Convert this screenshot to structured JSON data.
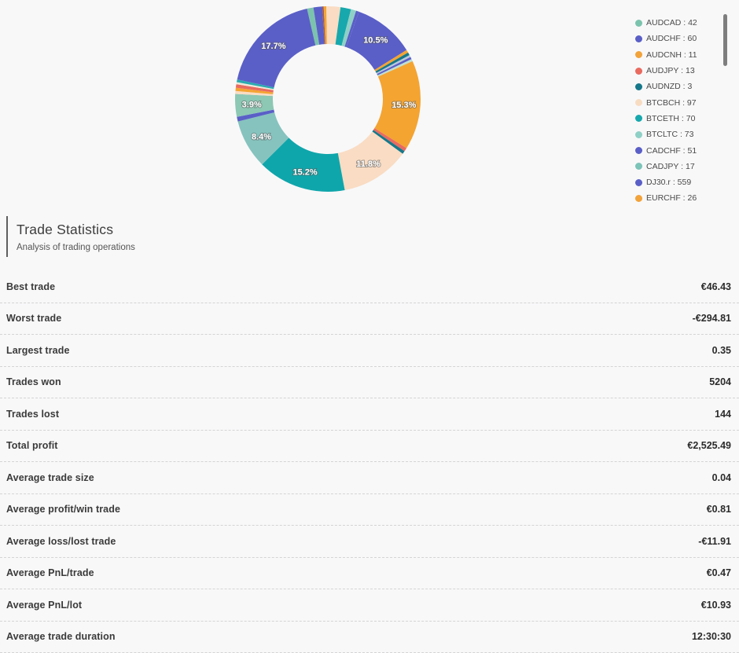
{
  "page": {
    "background": "#f8f8f9"
  },
  "section": {
    "title": "Trade Statistics",
    "subtitle": "Analysis of trading operations"
  },
  "stats": {
    "rows": [
      {
        "label": "Best trade",
        "value": "€46.43"
      },
      {
        "label": "Worst trade",
        "value": "-€294.81"
      },
      {
        "label": "Largest trade",
        "value": "0.35"
      },
      {
        "label": "Trades won",
        "value": "5204"
      },
      {
        "label": "Trades lost",
        "value": "144"
      },
      {
        "label": "Total profit",
        "value": "€2,525.49"
      },
      {
        "label": "Average trade size",
        "value": "0.04"
      },
      {
        "label": "Average profit/win trade",
        "value": "€0.81"
      },
      {
        "label": "Average loss/lost trade",
        "value": "-€11.91"
      },
      {
        "label": "Average PnL/trade",
        "value": "€0.47"
      },
      {
        "label": "Average PnL/lot",
        "value": "€10.93"
      },
      {
        "label": "Average trade duration",
        "value": "12:30:30"
      }
    ]
  },
  "chart_data": {
    "type": "pie",
    "donut": true,
    "legend_position": "right",
    "start_angle_deg": -13,
    "labeled_slices": [
      {
        "label": "17.7%",
        "value": 17.7,
        "color": "#5a5fc7"
      },
      {
        "label": "10.5%",
        "value": 10.5,
        "color": "#5a5fc7"
      },
      {
        "label": "15.3%",
        "value": 15.3,
        "color": "#f4a431"
      },
      {
        "label": "11.8%",
        "value": 11.8,
        "color": "#f9dcc3"
      },
      {
        "label": "15.2%",
        "value": 15.2,
        "color": "#0fa6ab"
      },
      {
        "label": "8.4%",
        "value": 8.4,
        "color": "#86c3be"
      },
      {
        "label": "3.9%",
        "value": 3.9,
        "color": "#8cc8b4"
      }
    ],
    "legend": [
      {
        "name": "AUDCAD",
        "count": 42,
        "color": "#7cc3ad"
      },
      {
        "name": "AUDCHF",
        "count": 60,
        "color": "#5a5fc7"
      },
      {
        "name": "AUDCNH",
        "count": 11,
        "color": "#f2a33a"
      },
      {
        "name": "AUDJPY",
        "count": 13,
        "color": "#e96a5f"
      },
      {
        "name": "AUDNZD",
        "count": 3,
        "color": "#16788a"
      },
      {
        "name": "BTCBCH",
        "count": 97,
        "color": "#f8dcc2"
      },
      {
        "name": "BTCETH",
        "count": 70,
        "color": "#17a8ad"
      },
      {
        "name": "BTCLTC",
        "count": 73,
        "color": "#8fd0c6"
      },
      {
        "name": "CADCHF",
        "count": 51,
        "color": "#5a5fc7"
      },
      {
        "name": "CADJPY",
        "count": 17,
        "color": "#7cc3b8"
      },
      {
        "name": "DJ30.r",
        "count": 559,
        "color": "#5a5fc7"
      },
      {
        "name": "EURCHF",
        "count": 26,
        "color": "#f2a33a"
      }
    ],
    "segments": [
      {
        "p": 1.1,
        "color": "#7cc3ad"
      },
      {
        "p": 1.5,
        "color": "#5a5fc7"
      },
      {
        "p": 0.25,
        "color": "#a0584e"
      },
      {
        "p": 0.45,
        "color": "#f4a431"
      },
      {
        "p": 2.4,
        "color": "#f9dcc3"
      },
      {
        "p": 1.8,
        "color": "#17a8ad"
      },
      {
        "p": 0.9,
        "color": "#8fd0c6"
      },
      {
        "p": 0.5,
        "color": "#5a5fc7"
      },
      {
        "p": 10.5,
        "color": "#5a5fc7",
        "label": "10.5%"
      },
      {
        "p": 0.5,
        "color": "#f4a431"
      },
      {
        "p": 0.5,
        "color": "#16788a"
      },
      {
        "p": 0.35,
        "color": "#b9c8dc"
      },
      {
        "p": 0.4,
        "color": "#5a5fc7"
      },
      {
        "p": 0.4,
        "color": "#bfe0d0"
      },
      {
        "p": 15.3,
        "color": "#f4a431",
        "label": "15.3%"
      },
      {
        "p": 0.6,
        "color": "#e96a5f"
      },
      {
        "p": 0.55,
        "color": "#16788a"
      },
      {
        "p": 11.8,
        "color": "#f9dcc3",
        "label": "11.8%"
      },
      {
        "p": 15.2,
        "color": "#0fa6ab",
        "label": "15.2%"
      },
      {
        "p": 8.4,
        "color": "#86c3be",
        "label": "8.4%"
      },
      {
        "p": 0.8,
        "color": "#5a5fc7"
      },
      {
        "p": 3.9,
        "color": "#8cc8b4",
        "label": "3.9%"
      },
      {
        "p": 0.5,
        "color": "#f9dcc3"
      },
      {
        "p": 0.55,
        "color": "#f4a431"
      },
      {
        "p": 0.6,
        "color": "#e96a5f"
      },
      {
        "p": 0.35,
        "color": "#efe8d8"
      },
      {
        "p": 0.45,
        "color": "#2aabb0"
      },
      {
        "p": 17.7,
        "color": "#5a5fc7",
        "label": "17.7%"
      }
    ]
  }
}
